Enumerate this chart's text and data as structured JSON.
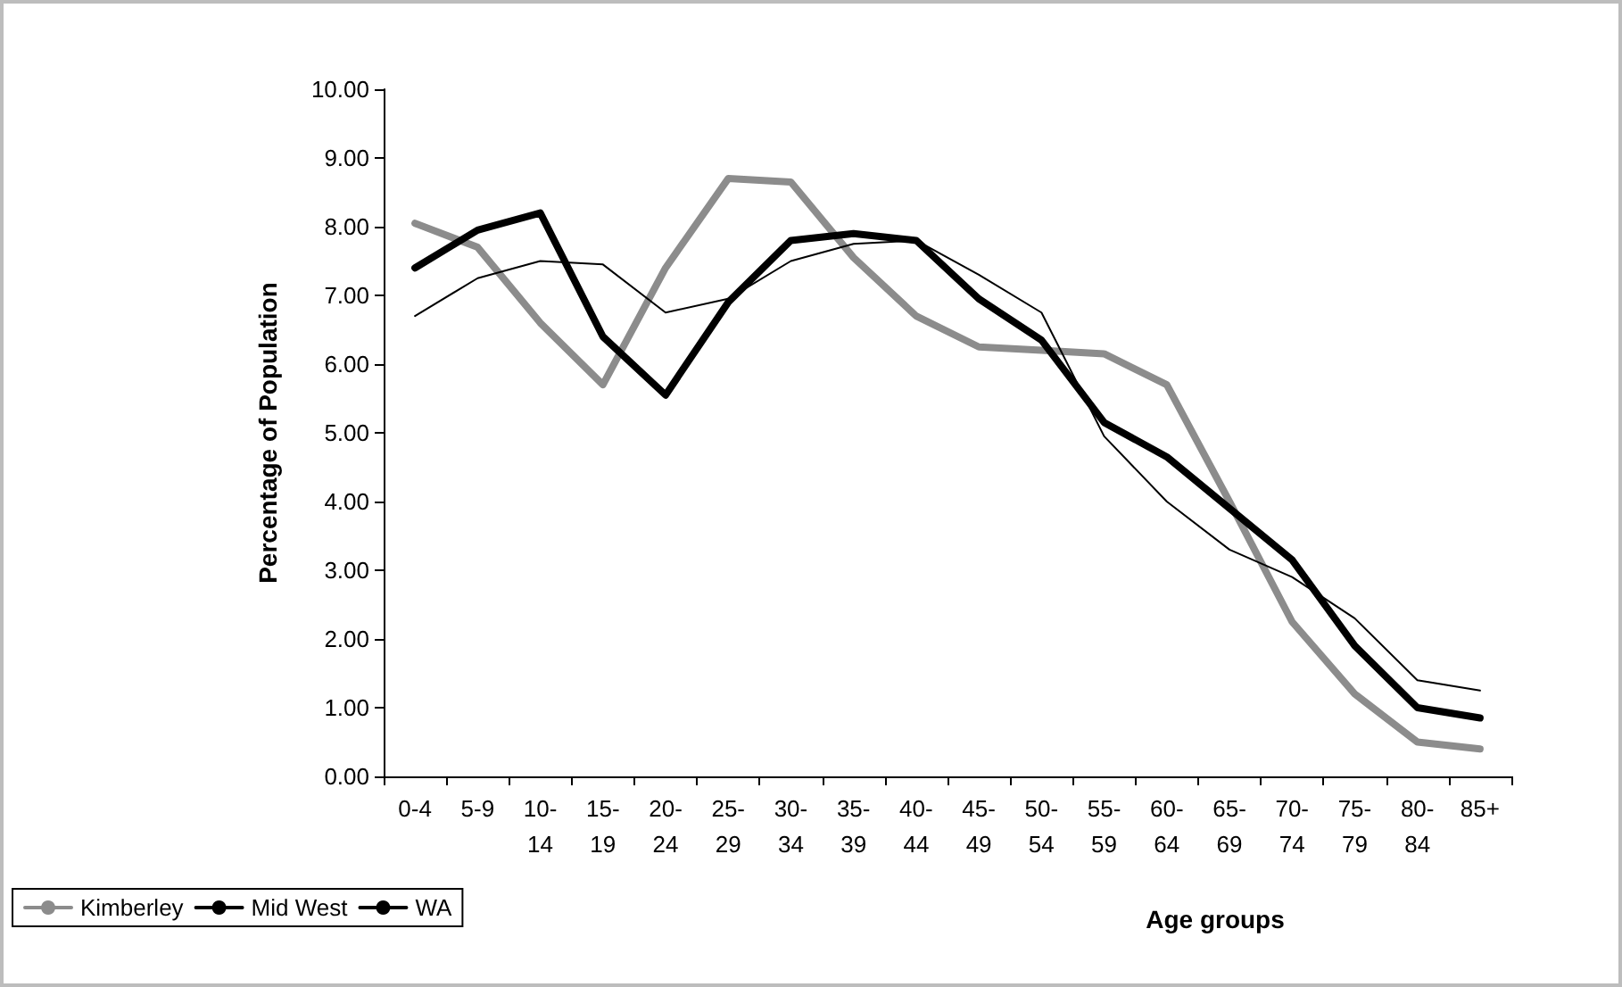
{
  "chart_data": {
    "type": "line",
    "xlabel": "Age groups",
    "ylabel": "Percentage of Population",
    "categories": [
      "0-4",
      "5-9",
      "10-\n14",
      "15-\n19",
      "20-\n24",
      "25-\n29",
      "30-\n34",
      "35-\n39",
      "40-\n44",
      "45-\n49",
      "50-\n54",
      "55-\n59",
      "60-\n64",
      "65-\n69",
      "70-\n74",
      "75-\n79",
      "80-\n84",
      "85+"
    ],
    "series": [
      {
        "name": "Kimberley",
        "color": "#8c8c8c",
        "values": [
          8.05,
          7.7,
          6.6,
          5.7,
          7.4,
          8.7,
          8.65,
          7.55,
          6.7,
          6.25,
          6.2,
          6.15,
          5.7,
          4.0,
          2.25,
          1.2,
          0.5,
          0.4
        ]
      },
      {
        "name": "Mid West",
        "color": "#000000",
        "values": [
          7.4,
          7.95,
          8.2,
          6.4,
          5.55,
          6.9,
          7.8,
          7.9,
          7.8,
          6.95,
          6.35,
          5.15,
          4.65,
          3.9,
          3.15,
          1.9,
          1.0,
          0.85
        ]
      },
      {
        "name": "WA",
        "color": "#000000",
        "values": [
          6.7,
          7.25,
          7.5,
          7.45,
          6.75,
          6.95,
          7.5,
          7.75,
          7.8,
          7.3,
          6.75,
          4.95,
          4.0,
          3.3,
          2.9,
          2.3,
          1.4,
          1.25
        ]
      }
    ],
    "ylim": [
      0,
      10
    ],
    "yticks": [
      {
        "value": 0,
        "label": "0.00"
      },
      {
        "value": 1,
        "label": "1.00"
      },
      {
        "value": 2,
        "label": "2.00"
      },
      {
        "value": 3,
        "label": "3.00"
      },
      {
        "value": 4,
        "label": "4.00"
      },
      {
        "value": 5,
        "label": "5.00"
      },
      {
        "value": 6,
        "label": "6.00"
      },
      {
        "value": 7,
        "label": "7.00"
      },
      {
        "value": 8,
        "label": "8.00"
      },
      {
        "value": 9,
        "label": "9.00"
      },
      {
        "value": 10,
        "label": "10.00"
      }
    ],
    "grid": false,
    "legend": "bottom left",
    "marker": "none",
    "line_style": "solid"
  }
}
